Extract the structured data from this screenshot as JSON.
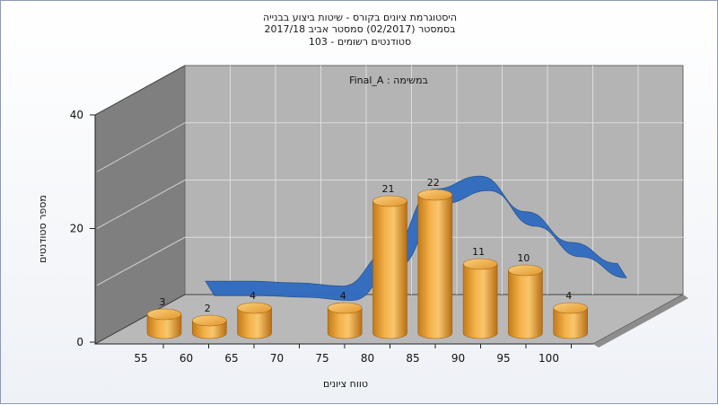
{
  "chart_data": {
    "type": "bar",
    "title_lines": [
      "היסטוגרמת ציונים בקורס - שיטות ביצוע בבנייה",
      "בסמסטר  (02/2017)  סמסטר אביב 2017/18",
      "סטודנטים רשומים - 103"
    ],
    "annotation": "במשימה : Final_A",
    "xlabel": "טווח ציונים",
    "ylabel": "מספר סטודנטים",
    "categories": [
      "55",
      "60",
      "65",
      "70",
      "75",
      "80",
      "85",
      "90",
      "95",
      "100"
    ],
    "values": [
      3,
      2,
      4,
      null,
      4,
      21,
      22,
      11,
      10,
      4
    ],
    "ylim": [
      0,
      40
    ],
    "yticks": [
      "0",
      "20",
      "40"
    ],
    "grid": true,
    "trend_curve": true,
    "colors": {
      "bar": "#f2a336",
      "curve": "#2f6bc0",
      "back_wall": "#b4b4b4",
      "left_wall": "#7f7f7f",
      "floor": "#b9b9b9"
    }
  }
}
